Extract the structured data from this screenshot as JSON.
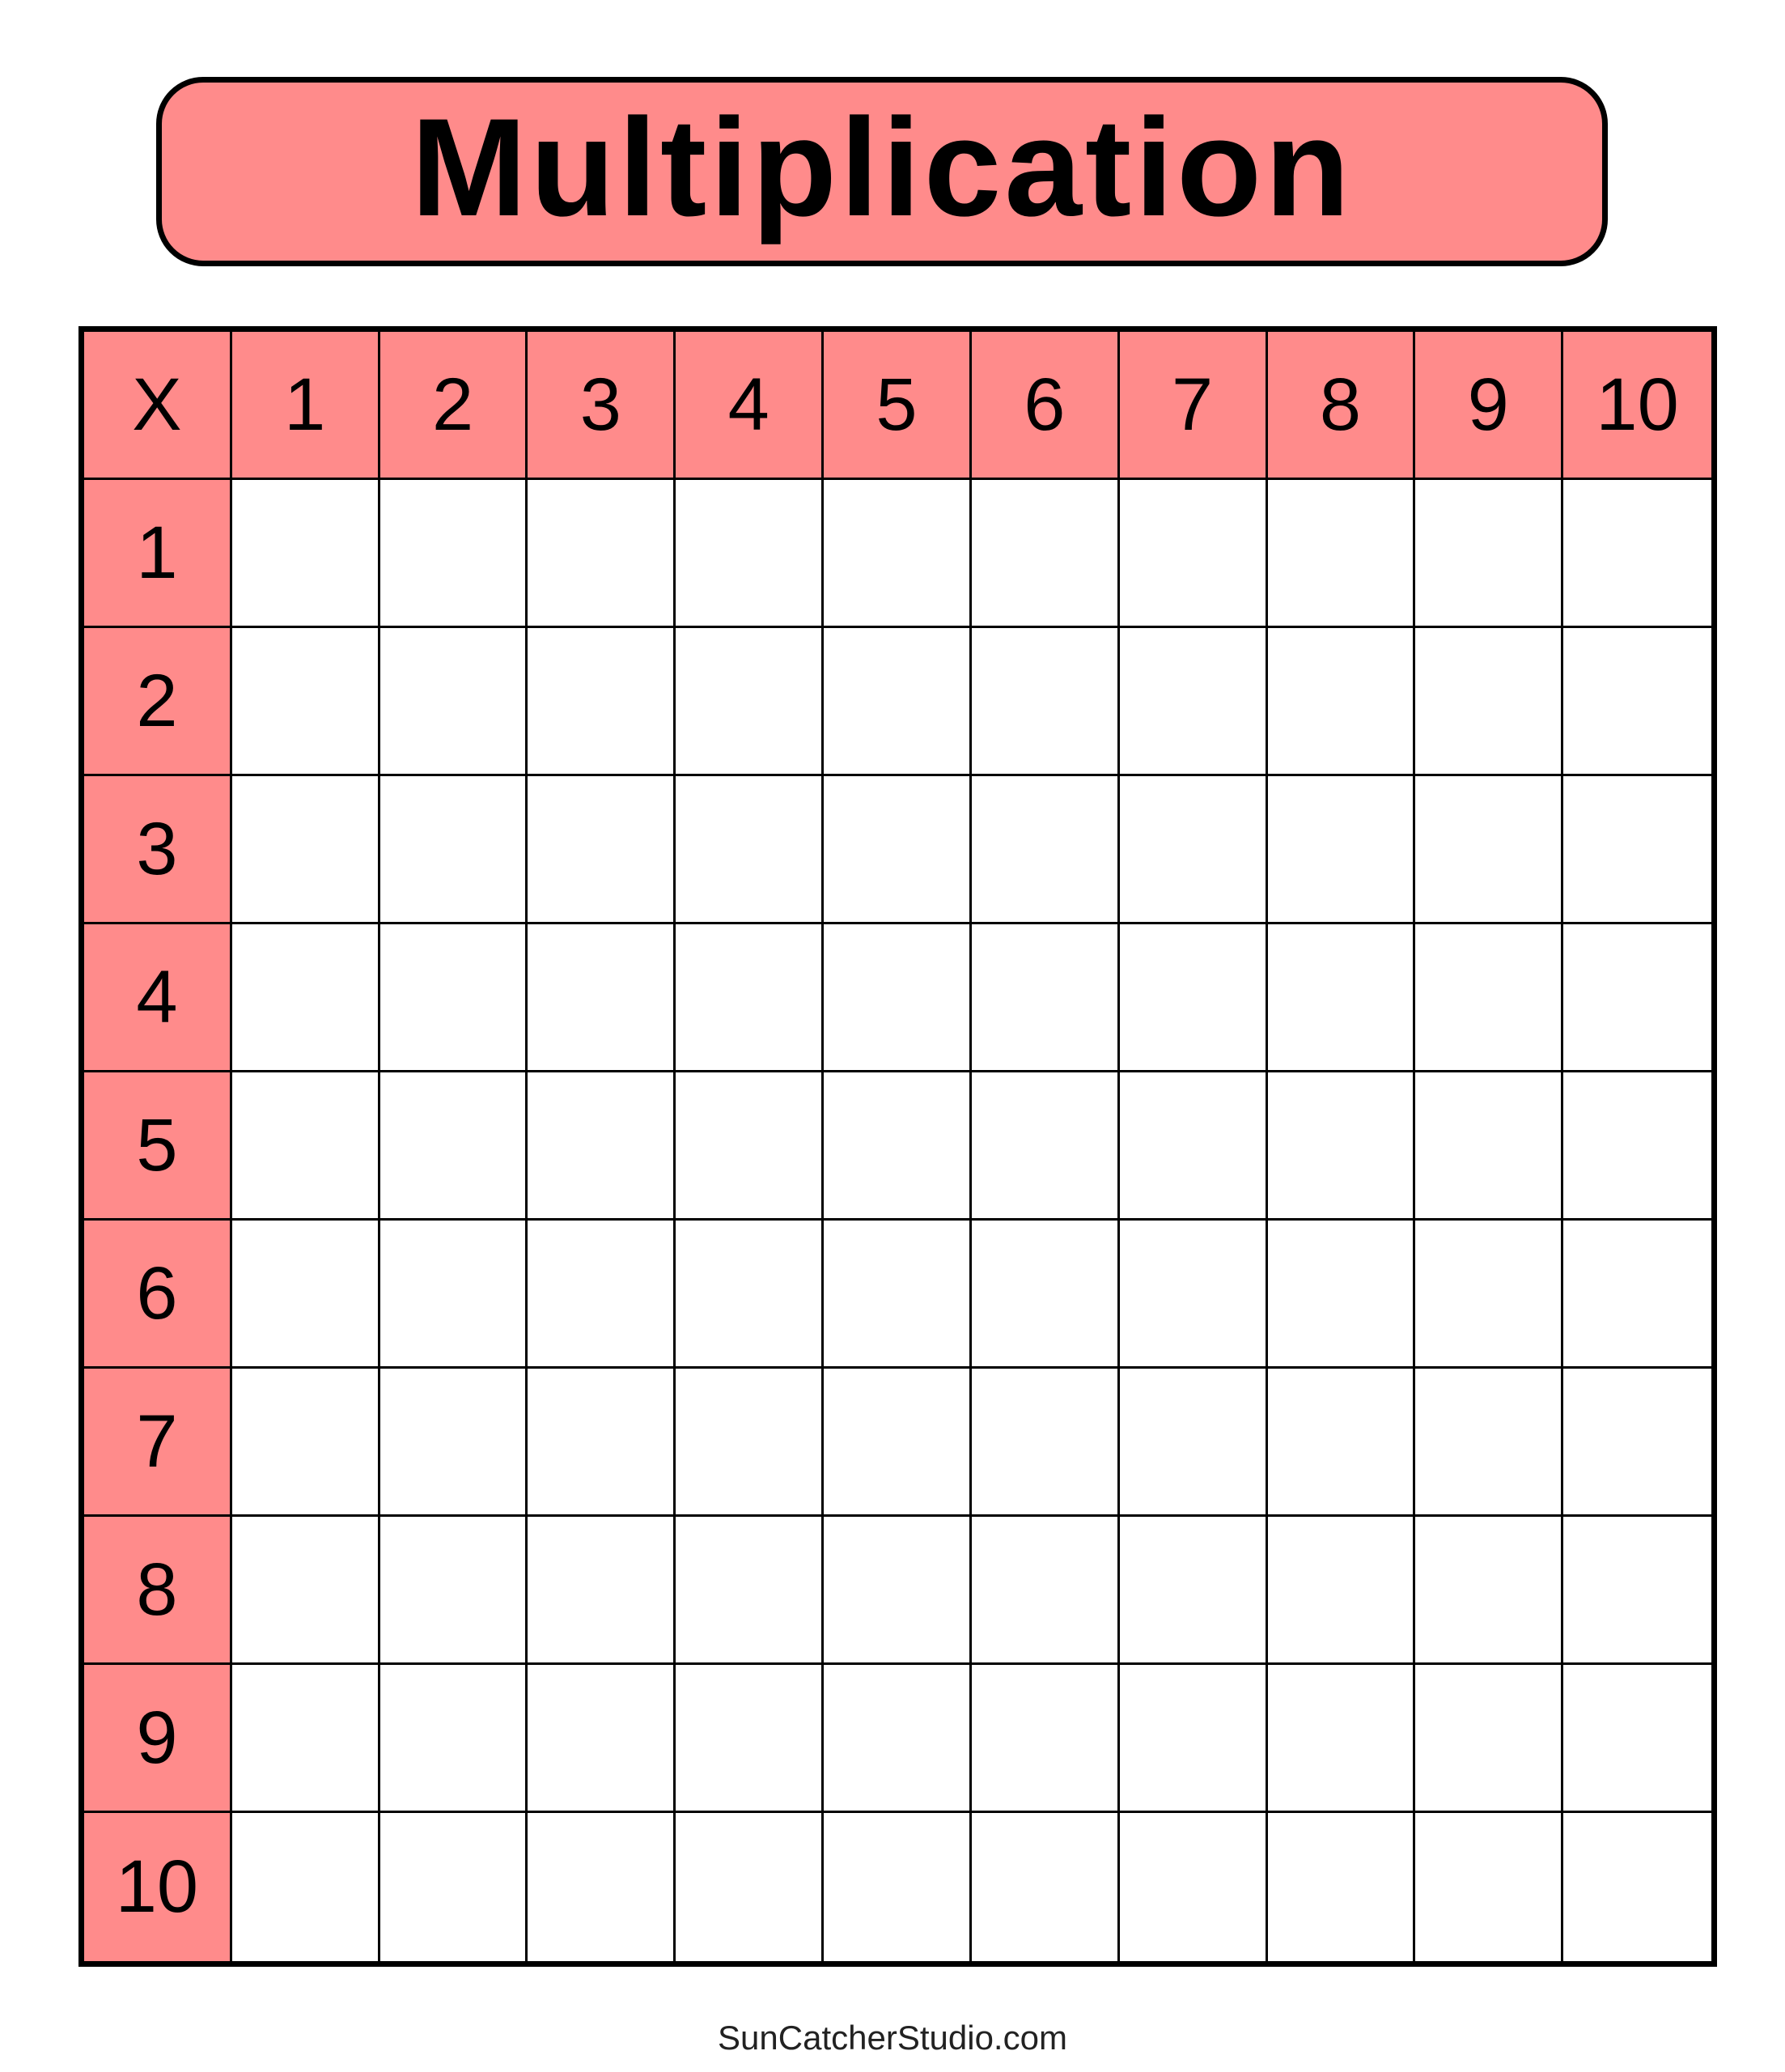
{
  "title": "Multiplication",
  "corner_label": "X",
  "column_headers": [
    "1",
    "2",
    "3",
    "4",
    "5",
    "6",
    "7",
    "8",
    "9",
    "10"
  ],
  "row_headers": [
    "1",
    "2",
    "3",
    "4",
    "5",
    "6",
    "7",
    "8",
    "9",
    "10"
  ],
  "footer": "SunCatcherStudio.com",
  "colors": {
    "header_fill": "#FF8B8B",
    "border": "#000000"
  }
}
